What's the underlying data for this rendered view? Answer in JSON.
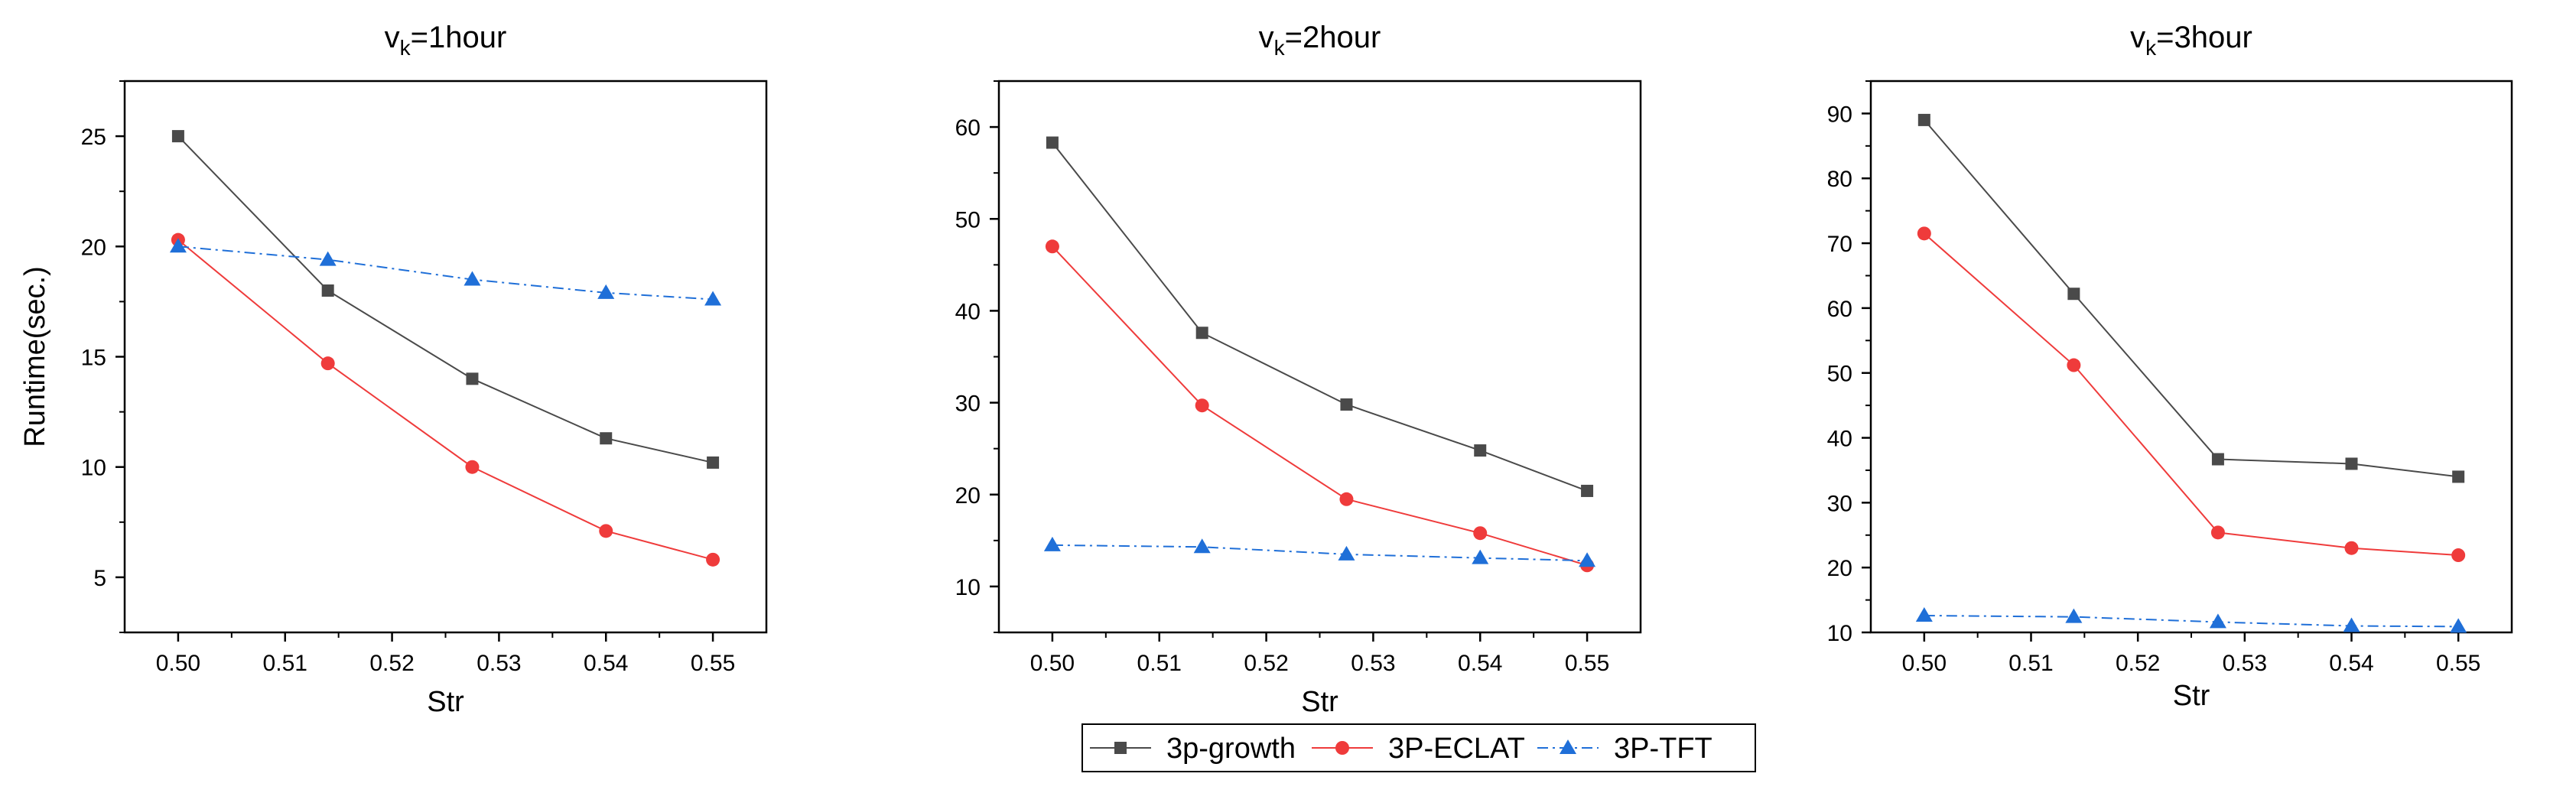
{
  "chart_data": [
    {
      "type": "line",
      "title": {
        "main": "v",
        "subscript": "k",
        "suffix": "=1hour"
      },
      "xlabel": "Str",
      "ylabel": "Runtime(sec.)",
      "xlim": [
        0.495,
        0.555
      ],
      "ylim": [
        2.5,
        27.5
      ],
      "x": [
        0.5,
        0.514,
        0.5275,
        0.54,
        0.55
      ],
      "xticks": [
        0.5,
        0.51,
        0.52,
        0.53,
        0.54,
        0.55
      ],
      "xtick_labels": [
        "0.50",
        "0.51",
        "0.52",
        "0.53",
        "0.54",
        "0.55"
      ],
      "yticks": [
        5,
        10,
        15,
        20,
        25
      ],
      "ytick_labels": [
        "5",
        "10",
        "15",
        "20",
        "25"
      ],
      "series": [
        {
          "name": "3p-growth",
          "values": [
            25.0,
            18.0,
            14.0,
            11.3,
            10.2
          ]
        },
        {
          "name": "3P-ECLAT",
          "values": [
            20.3,
            14.7,
            10.0,
            7.1,
            5.8
          ]
        },
        {
          "name": "3P-TFT",
          "values": [
            20.0,
            19.4,
            18.5,
            17.9,
            17.6
          ]
        }
      ]
    },
    {
      "type": "line",
      "title": {
        "main": "v",
        "subscript": "k",
        "suffix": "=2hour"
      },
      "xlabel": "Str",
      "ylabel": "",
      "xlim": [
        0.495,
        0.555
      ],
      "ylim": [
        5,
        65
      ],
      "x": [
        0.5,
        0.514,
        0.5275,
        0.54,
        0.55
      ],
      "xticks": [
        0.5,
        0.51,
        0.52,
        0.53,
        0.54,
        0.55
      ],
      "xtick_labels": [
        "0.50",
        "0.51",
        "0.52",
        "0.53",
        "0.54",
        "0.55"
      ],
      "yticks": [
        10,
        20,
        30,
        40,
        50,
        60
      ],
      "ytick_labels": [
        "10",
        "20",
        "30",
        "40",
        "50",
        "60"
      ],
      "series": [
        {
          "name": "3p-growth",
          "values": [
            58.3,
            37.6,
            29.8,
            24.8,
            20.4
          ]
        },
        {
          "name": "3P-ECLAT",
          "values": [
            47.0,
            29.7,
            19.5,
            15.8,
            12.3
          ]
        },
        {
          "name": "3P-TFT",
          "values": [
            14.5,
            14.3,
            13.5,
            13.1,
            12.8
          ]
        }
      ]
    },
    {
      "type": "line",
      "title": {
        "main": "v",
        "subscript": "k",
        "suffix": "=3hour"
      },
      "xlabel": "Str",
      "ylabel": "",
      "xlim": [
        0.495,
        0.555
      ],
      "ylim": [
        10,
        95
      ],
      "x": [
        0.5,
        0.514,
        0.5275,
        0.54,
        0.55
      ],
      "xticks": [
        0.5,
        0.51,
        0.52,
        0.53,
        0.54,
        0.55
      ],
      "xtick_labels": [
        "0.50",
        "0.51",
        "0.52",
        "0.53",
        "0.54",
        "0.55"
      ],
      "yticks": [
        10,
        20,
        30,
        40,
        50,
        60,
        70,
        80,
        90
      ],
      "ytick_labels": [
        "10",
        "20",
        "30",
        "40",
        "50",
        "60",
        "70",
        "80",
        "90"
      ],
      "series": [
        {
          "name": "3p-growth",
          "values": [
            89.0,
            62.2,
            36.7,
            36.0,
            34.0
          ]
        },
        {
          "name": "3P-ECLAT",
          "values": [
            71.5,
            51.2,
            25.4,
            23.0,
            21.9
          ]
        },
        {
          "name": "3P-TFT",
          "values": [
            12.6,
            12.4,
            11.6,
            11.0,
            10.9
          ]
        }
      ]
    }
  ],
  "legend": {
    "placement": "bottom-center",
    "entries": [
      {
        "name": "3p-growth",
        "color": "#4a4a4a",
        "marker": "square"
      },
      {
        "name": "3P-ECLAT",
        "color": "#ef3b3b",
        "marker": "circle"
      },
      {
        "name": "3P-TFT",
        "color": "#1f6fd8",
        "marker": "triangle"
      }
    ]
  },
  "styles": {
    "3p-growth": {
      "color": "#4a4a4a",
      "marker": "square",
      "dash": "none"
    },
    "3P-ECLAT": {
      "color": "#ef3b3b",
      "marker": "circle",
      "dash": "none"
    },
    "3P-TFT": {
      "color": "#1f6fd8",
      "marker": "triangle",
      "dash": "14 6 3 6"
    }
  }
}
